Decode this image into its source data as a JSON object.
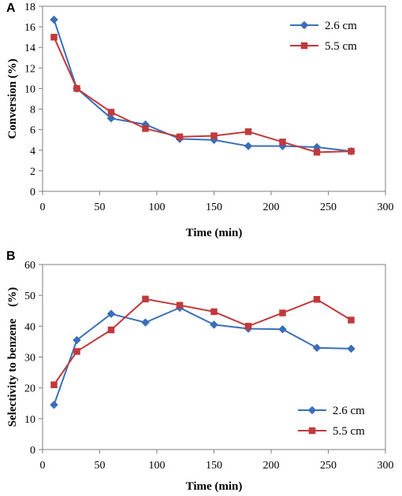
{
  "colors": {
    "series_1": "#3A6FB8",
    "series_2": "#C0393B",
    "axis": "#7f7f7f"
  },
  "chart_data": [
    {
      "type": "line",
      "panel_label": "A",
      "title": "",
      "xlabel": "Time (min)",
      "ylabel": "Conversion (%)",
      "xlim": [
        0,
        300
      ],
      "ylim": [
        0,
        18
      ],
      "xticks": [
        0,
        50,
        100,
        150,
        200,
        250,
        300
      ],
      "yticks": [
        0,
        2,
        4,
        6,
        8,
        10,
        12,
        14,
        16,
        18
      ],
      "grid": false,
      "legend_position": "top-right",
      "series": [
        {
          "name": "2.6 cm",
          "marker": "diamond",
          "color": "#3A6FB8",
          "x": [
            10,
            30,
            60,
            90,
            120,
            150,
            180,
            210,
            240,
            270
          ],
          "y": [
            16.7,
            10.0,
            7.1,
            6.5,
            5.1,
            5.0,
            4.4,
            4.4,
            4.3,
            3.9
          ]
        },
        {
          "name": "5.5 cm",
          "marker": "square",
          "color": "#C0393B",
          "x": [
            10,
            30,
            60,
            90,
            120,
            150,
            180,
            210,
            240,
            270
          ],
          "y": [
            15.0,
            10.0,
            7.7,
            6.1,
            5.3,
            5.4,
            5.8,
            4.8,
            3.8,
            3.9
          ]
        }
      ]
    },
    {
      "type": "line",
      "panel_label": "B",
      "title": "",
      "xlabel": "Time (min)",
      "ylabel": "Selectivity to benzene    (%)",
      "xlim": [
        0,
        300
      ],
      "ylim": [
        0,
        60
      ],
      "xticks": [
        0,
        50,
        100,
        150,
        200,
        250,
        300
      ],
      "yticks": [
        0,
        10,
        20,
        30,
        40,
        50,
        60
      ],
      "grid": false,
      "legend_position": "bottom-right",
      "series": [
        {
          "name": "2.6 cm",
          "marker": "diamond",
          "color": "#3A6FB8",
          "x": [
            10,
            30,
            60,
            90,
            120,
            150,
            180,
            210,
            240,
            270
          ],
          "y": [
            14.5,
            35.5,
            44.0,
            41.2,
            46.0,
            40.5,
            39.2,
            39.0,
            33.0,
            32.7
          ]
        },
        {
          "name": "5.5 cm",
          "marker": "square",
          "color": "#C0393B",
          "x": [
            10,
            30,
            60,
            90,
            120,
            150,
            180,
            210,
            240,
            270
          ],
          "y": [
            21.0,
            31.8,
            38.8,
            48.8,
            46.8,
            44.7,
            40.0,
            44.3,
            48.7,
            42.0
          ]
        }
      ]
    }
  ]
}
